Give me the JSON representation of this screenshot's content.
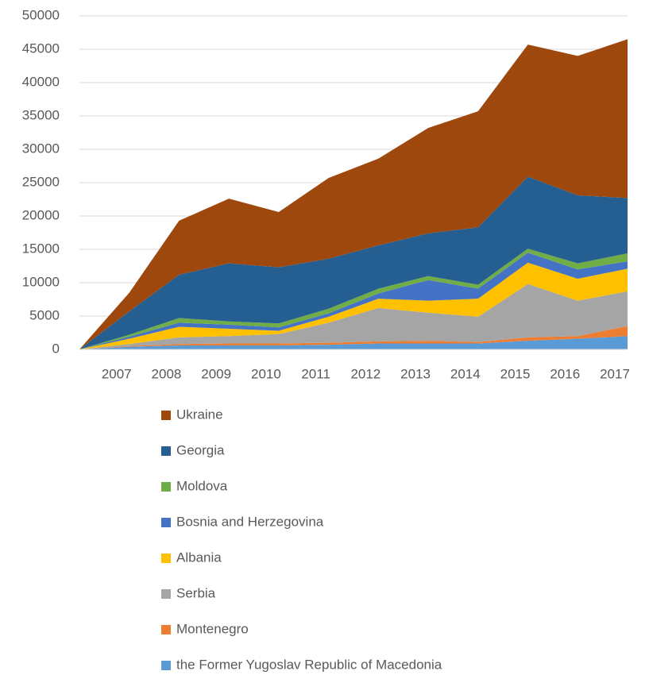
{
  "chart_data": {
    "type": "stacked_area",
    "categories": [
      null,
      "2007",
      "2008",
      "2009",
      "2010",
      "2011",
      "2012",
      "2013",
      "2014",
      "2015",
      "2016",
      "2017"
    ],
    "series": [
      {
        "name": "the Former Yugoslav Republic of Macedonia",
        "color": "#5b9bd5",
        "values": [
          0,
          400,
          600,
          600,
          600,
          700,
          900,
          900,
          900,
          1300,
          1600,
          2000
        ]
      },
      {
        "name": "Montenegro",
        "color": "#ed7d31",
        "values": [
          0,
          100,
          200,
          300,
          300,
          300,
          300,
          400,
          200,
          500,
          400,
          1500
        ]
      },
      {
        "name": "Serbia",
        "color": "#a5a5a5",
        "values": [
          0,
          300,
          1000,
          1100,
          1400,
          3000,
          5000,
          4200,
          3800,
          8000,
          5300,
          5200
        ]
      },
      {
        "name": "Albania",
        "color": "#ffc000",
        "values": [
          0,
          800,
          1600,
          1100,
          500,
          900,
          1400,
          1800,
          2700,
          3200,
          3300,
          3400
        ]
      },
      {
        "name": "Bosnia and Herzegovina",
        "color": "#4472c4",
        "values": [
          0,
          300,
          600,
          600,
          500,
          500,
          800,
          3100,
          1500,
          1500,
          1400,
          1100
        ]
      },
      {
        "name": "Moldova",
        "color": "#70ad47",
        "values": [
          0,
          300,
          700,
          500,
          600,
          700,
          700,
          600,
          600,
          600,
          900,
          1200
        ]
      },
      {
        "name": "Georgia",
        "color": "#255e91",
        "values": [
          0,
          3500,
          6500,
          8700,
          8400,
          7500,
          6500,
          6400,
          8600,
          10800,
          10200,
          8300
        ]
      },
      {
        "name": "Ukraine",
        "color": "#9e480e",
        "values": [
          0,
          2800,
          8100,
          9700,
          8300,
          12100,
          13000,
          15800,
          17400,
          19800,
          20900,
          23800
        ]
      }
    ],
    "ylim": [
      0,
      50000
    ],
    "yticks": [
      0,
      5000,
      10000,
      15000,
      20000,
      25000,
      30000,
      35000,
      40000,
      45000,
      50000
    ],
    "grid": true,
    "legend": "bottom"
  }
}
